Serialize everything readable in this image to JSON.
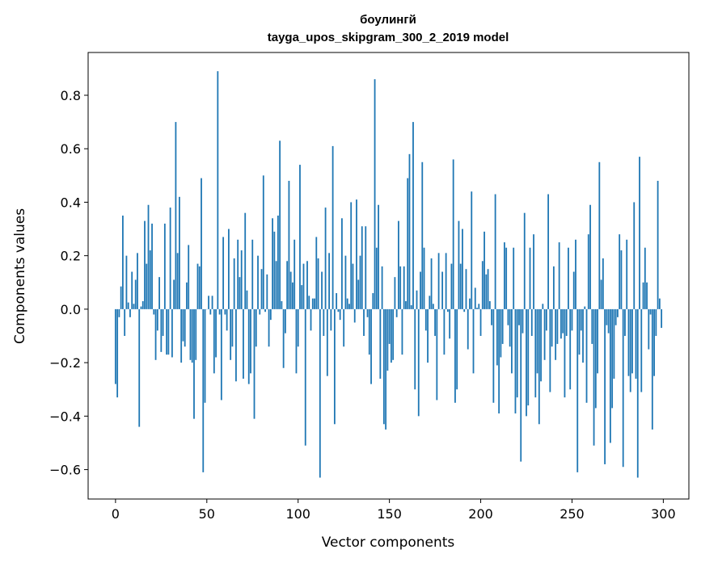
{
  "chart_data": {
    "type": "bar",
    "title": "боулингй",
    "subtitle": "tayga_upos_skipgram_300_2_2019 model",
    "xlabel": "Vector components",
    "ylabel": "Components values",
    "xlim": [
      -15,
      314
    ],
    "ylim": [
      -0.71,
      0.96
    ],
    "xticks": [
      0,
      50,
      100,
      150,
      200,
      250,
      300
    ],
    "yticks": [
      -0.6,
      -0.4,
      -0.2,
      0.0,
      0.2,
      0.4,
      0.6,
      0.8
    ],
    "ytick_labels": [
      "−0.6",
      "−0.4",
      "−0.2",
      "0.0",
      "0.2",
      "0.4",
      "0.6",
      "0.8"
    ],
    "xtick_labels": [
      "0",
      "50",
      "100",
      "150",
      "200",
      "250",
      "300"
    ],
    "grid": false,
    "bar_color": "#1f77b4",
    "values": [
      -0.28,
      -0.33,
      -0.03,
      0.085,
      0.35,
      -0.1,
      0.2,
      0.025,
      -0.03,
      0.14,
      0.02,
      0.11,
      0.21,
      -0.44,
      0.01,
      0.03,
      0.33,
      0.17,
      0.39,
      0.22,
      0.32,
      -0.02,
      -0.19,
      -0.08,
      0.12,
      -0.16,
      -0.1,
      0.32,
      -0.17,
      -0.17,
      0.38,
      -0.18,
      0.11,
      0.7,
      0.21,
      0.42,
      -0.2,
      -0.12,
      -0.14,
      0.1,
      0.24,
      -0.19,
      -0.2,
      -0.41,
      -0.19,
      0.17,
      0.16,
      0.49,
      -0.61,
      -0.35,
      0.0,
      0.05,
      -0.02,
      0.05,
      -0.24,
      -0.18,
      0.89,
      -0.02,
      -0.34,
      0.27,
      -0.02,
      -0.08,
      0.3,
      -0.19,
      -0.14,
      0.19,
      -0.27,
      0.26,
      0.12,
      0.22,
      -0.26,
      0.36,
      0.07,
      -0.28,
      -0.24,
      0.26,
      -0.41,
      -0.14,
      0.2,
      -0.02,
      0.15,
      0.5,
      -0.01,
      0.13,
      -0.14,
      -0.04,
      0.34,
      0.29,
      0.18,
      0.35,
      0.63,
      0.03,
      -0.22,
      -0.09,
      0.18,
      0.48,
      0.14,
      0.1,
      0.26,
      -0.24,
      -0.14,
      0.54,
      0.09,
      0.17,
      -0.51,
      0.18,
      0.05,
      -0.08,
      0.04,
      0.04,
      0.27,
      0.19,
      -0.63,
      0.14,
      -0.1,
      0.38,
      -0.25,
      0.21,
      -0.08,
      0.61,
      -0.43,
      0.06,
      -0.01,
      -0.04,
      0.34,
      -0.14,
      0.2,
      0.04,
      0.02,
      0.4,
      0.17,
      -0.05,
      0.41,
      0.11,
      0.2,
      0.31,
      -0.1,
      0.31,
      -0.03,
      -0.17,
      -0.28,
      0.06,
      0.86,
      0.23,
      0.39,
      -0.26,
      0.16,
      -0.43,
      -0.45,
      -0.23,
      -0.13,
      -0.2,
      -0.19,
      0.12,
      -0.03,
      0.33,
      0.16,
      -0.17,
      0.16,
      0.03,
      0.49,
      0.58,
      0.015,
      0.7,
      -0.3,
      0.07,
      -0.4,
      0.14,
      0.55,
      0.23,
      -0.08,
      -0.2,
      0.05,
      0.19,
      0.02,
      -0.1,
      -0.34,
      0.21,
      0.0,
      0.14,
      -0.17,
      0.21,
      -0.01,
      -0.11,
      0.17,
      0.56,
      -0.35,
      -0.3,
      0.33,
      0.17,
      0.3,
      -0.01,
      0.15,
      -0.15,
      0.04,
      0.44,
      -0.24,
      0.08,
      0.005,
      0.02,
      -0.1,
      0.18,
      0.29,
      0.13,
      0.15,
      0.03,
      -0.06,
      -0.35,
      0.43,
      -0.21,
      -0.39,
      -0.18,
      -0.13,
      0.25,
      0.23,
      -0.06,
      -0.14,
      -0.24,
      0.23,
      -0.39,
      -0.33,
      -0.06,
      -0.57,
      -0.09,
      0.36,
      -0.4,
      -0.36,
      0.23,
      -0.1,
      0.28,
      -0.33,
      -0.24,
      -0.43,
      -0.27,
      0.02,
      -0.19,
      -0.08,
      0.43,
      -0.31,
      -0.14,
      0.16,
      -0.19,
      -0.13,
      0.25,
      -0.11,
      -0.09,
      -0.33,
      -0.1,
      0.23,
      -0.3,
      -0.08,
      0.14,
      0.26,
      -0.61,
      -0.17,
      -0.08,
      -0.2,
      0.01,
      -0.35,
      0.28,
      0.39,
      -0.13,
      -0.51,
      -0.37,
      -0.24,
      0.55,
      0.11,
      0.19,
      -0.58,
      -0.06,
      -0.09,
      -0.5,
      -0.37,
      -0.26,
      -0.06,
      -0.03,
      0.28,
      0.22,
      -0.59,
      -0.1,
      0.26,
      -0.25,
      -0.31,
      -0.24,
      0.4,
      -0.26,
      -0.63,
      0.57,
      -0.31,
      0.1,
      0.23,
      0.1,
      -0.15,
      -0.02,
      -0.45,
      -0.25,
      -0.1,
      0.48,
      0.04,
      -0.07
    ]
  }
}
